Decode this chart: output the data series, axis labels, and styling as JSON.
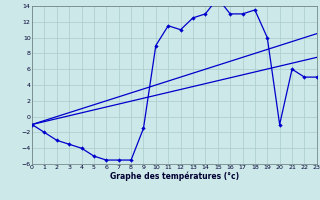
{
  "xlabel": "Graphe des températures (°c)",
  "bg_color": "#cce8e8",
  "grid_color": "#aacccc",
  "line_color": "#0000cc",
  "xmin": 0,
  "xmax": 23,
  "ymin": -6,
  "ymax": 14,
  "yticks": [
    -6,
    -4,
    -2,
    0,
    2,
    4,
    6,
    8,
    10,
    12,
    14
  ],
  "xticks": [
    0,
    1,
    2,
    3,
    4,
    5,
    6,
    7,
    8,
    9,
    10,
    11,
    12,
    13,
    14,
    15,
    16,
    17,
    18,
    19,
    20,
    21,
    22,
    23
  ],
  "line1_x": [
    0,
    1,
    2,
    3,
    4,
    5,
    6,
    7,
    8,
    9,
    10,
    11,
    12,
    13,
    14,
    15,
    16,
    17,
    18,
    19,
    20,
    21,
    22,
    23
  ],
  "line1_y": [
    -1,
    -2,
    -3,
    -3.5,
    -4,
    -5,
    -5.5,
    -5.5,
    -5.5,
    -1.5,
    9,
    11.5,
    11,
    12.5,
    13,
    15,
    13,
    13,
    13.5,
    10,
    -1,
    6,
    5,
    5
  ],
  "line2_x": [
    0,
    23
  ],
  "line2_y": [
    -1,
    7.5
  ],
  "line3_x": [
    0,
    23
  ],
  "line3_y": [
    -1,
    10.5
  ],
  "marker_x": [
    0,
    1,
    2,
    3,
    4,
    5,
    6,
    7,
    8,
    9,
    10,
    11,
    12,
    13,
    14,
    15,
    16,
    17,
    18,
    19,
    20,
    21,
    22,
    23
  ],
  "marker_y": [
    -1,
    -2,
    -3,
    -3.5,
    -4,
    -5,
    -5.5,
    -5.5,
    -5.5,
    -1.5,
    9,
    11.5,
    11,
    12.5,
    13,
    15,
    13,
    13,
    13.5,
    10,
    -1,
    6,
    5,
    5
  ]
}
